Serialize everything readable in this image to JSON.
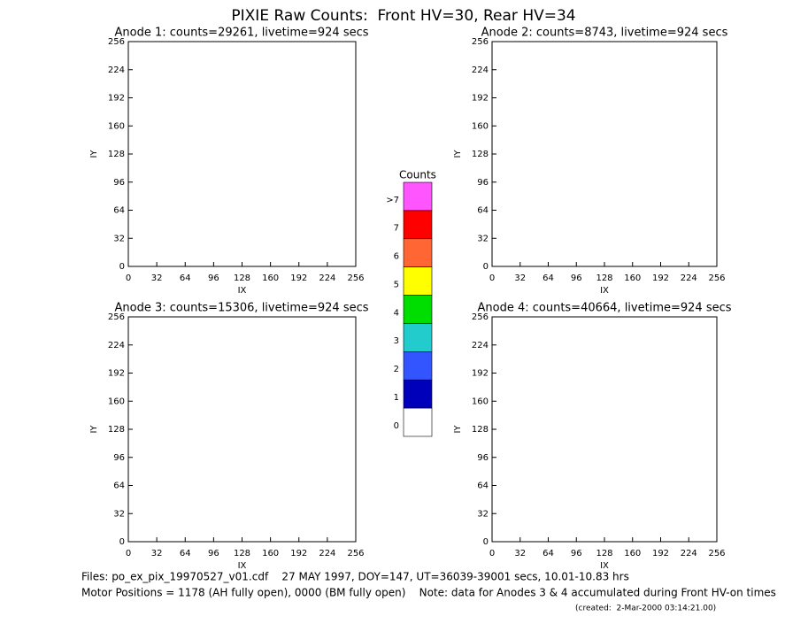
{
  "title": "PIXIE Raw Counts:  Front HV=30, Rear HV=34",
  "chart_data": [
    {
      "type": "heatmap",
      "title": "Anode 1: counts=29261, livetime=924 secs",
      "xlabel": "IX",
      "ylabel": "IY",
      "xlim": [
        0,
        256
      ],
      "ylim": [
        0,
        256
      ],
      "xticks": [
        0,
        32,
        64,
        96,
        128,
        160,
        192,
        224,
        256
      ],
      "yticks": [
        0,
        32,
        64,
        96,
        128,
        160,
        192,
        224,
        256
      ]
    },
    {
      "type": "heatmap",
      "title": "Anode 2: counts=8743, livetime=924 secs",
      "xlabel": "IX",
      "ylabel": "IY",
      "xlim": [
        0,
        256
      ],
      "ylim": [
        0,
        256
      ],
      "xticks": [
        0,
        32,
        64,
        96,
        128,
        160,
        192,
        224,
        256
      ],
      "yticks": [
        0,
        32,
        64,
        96,
        128,
        160,
        192,
        224,
        256
      ]
    },
    {
      "type": "heatmap",
      "title": "Anode 3: counts=15306, livetime=924 secs",
      "xlabel": "IX",
      "ylabel": "IY",
      "xlim": [
        0,
        256
      ],
      "ylim": [
        0,
        256
      ],
      "xticks": [
        0,
        32,
        64,
        96,
        128,
        160,
        192,
        224,
        256
      ],
      "yticks": [
        0,
        32,
        64,
        96,
        128,
        160,
        192,
        224,
        256
      ]
    },
    {
      "type": "heatmap",
      "title": "Anode 4: counts=40664, livetime=924 secs",
      "xlabel": "IX",
      "ylabel": "IY",
      "xlim": [
        0,
        256
      ],
      "ylim": [
        0,
        256
      ],
      "xticks": [
        0,
        32,
        64,
        96,
        128,
        160,
        192,
        224,
        256
      ],
      "yticks": [
        0,
        32,
        64,
        96,
        128,
        160,
        192,
        224,
        256
      ]
    }
  ],
  "colorbar": {
    "title": "Counts",
    "levels": [
      {
        "label": ">7",
        "color": "#ff55ff"
      },
      {
        "label": "7",
        "color": "#ff0000"
      },
      {
        "label": "6",
        "color": "#ff6633"
      },
      {
        "label": "5",
        "color": "#ffff00"
      },
      {
        "label": "4",
        "color": "#00dd00"
      },
      {
        "label": "3",
        "color": "#22cccc"
      },
      {
        "label": "2",
        "color": "#3355ff"
      },
      {
        "label": "1",
        "color": "#0000bb"
      },
      {
        "label": "0",
        "color": "#ffffff"
      }
    ]
  },
  "footer": {
    "files": "Files: po_ex_pix_19970527_v01.cdf    27 MAY 1997, DOY=147, UT=36039-39001 secs, 10.01-10.83 hrs",
    "motor": "Motor Positions = 1178 (AH fully open), 0000 (BM fully open)    Note: data for Anodes 3 & 4 accumulated during Front HV-on times",
    "created": "(created:  2-Mar-2000 03:14:21.00)"
  }
}
